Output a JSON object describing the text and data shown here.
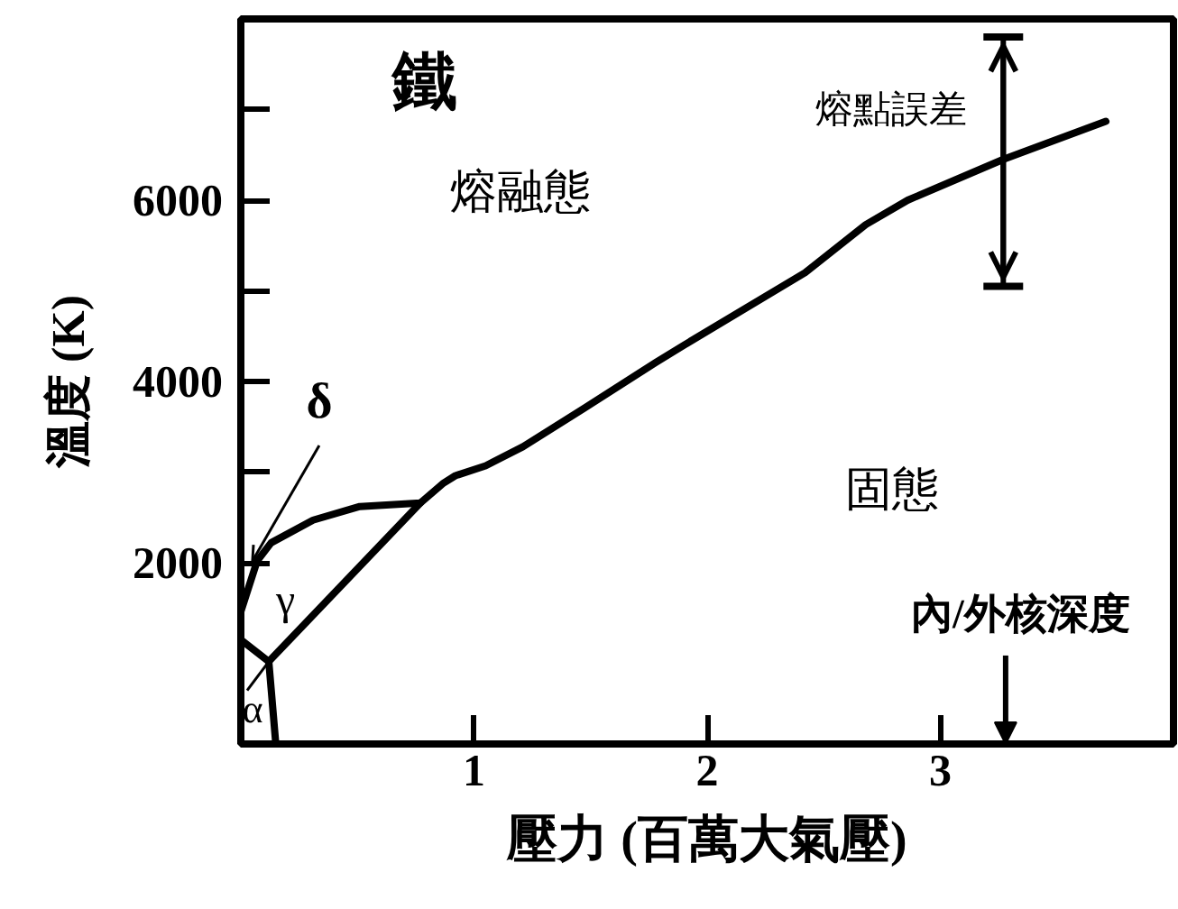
{
  "chart_data": {
    "type": "line",
    "title": "鐵",
    "xlabel": "壓力 (百萬大氣壓)",
    "ylabel": "溫度 (K)",
    "xlim": [
      0,
      4
    ],
    "ylim": [
      0,
      8000
    ],
    "xticks": [
      1,
      2,
      3
    ],
    "yticks": [
      2000,
      {
        "value": 3000,
        "label": null
      },
      4000,
      {
        "value": 5000,
        "label": null
      },
      6000,
      {
        "value": 7000,
        "label": null
      }
    ],
    "series": [
      {
        "color": "#000000",
        "x": [
          0,
          0.07
        ],
        "values": [
          1460,
          2020
        ]
      },
      {
        "color": "#000000",
        "x": [
          0.07,
          0.13,
          0.31,
          0.51,
          0.77,
          0.87,
          0.92,
          1.05,
          1.21,
          1.47,
          1.78,
          1.9,
          2.42,
          2.68,
          2.86,
          3.27,
          3.71
        ],
        "values": [
          2020,
          2220,
          2470,
          2620,
          2660,
          2880,
          2960,
          3070,
          3280,
          3700,
          4210,
          4400,
          5200,
          5730,
          6000,
          6450,
          6870
        ],
        "errors": [
          null,
          null,
          null,
          null,
          null,
          null,
          null,
          null,
          null,
          null,
          null,
          null,
          null,
          null,
          null,
          [
            5050,
            7800
          ],
          null
        ]
      },
      {
        "color": "#000000",
        "x": [
          0.12,
          0.77
        ],
        "values": [
          910,
          2660
        ]
      },
      {
        "color": "#000000",
        "x": [
          0,
          0.12
        ],
        "values": [
          1150,
          910
        ]
      },
      {
        "color": "#000000",
        "x": [
          0.12,
          0.15
        ],
        "values": [
          910,
          0
        ]
      }
    ],
    "annotations": [
      "熔融態",
      "固態",
      {
        "text": "δ",
        "x": 0.05,
        "y": 2020
      },
      "γ",
      {
        "text": "α",
        "x": 0.12,
        "y": 910
      },
      {
        "text": "熔點誤差",
        "x": 3.27,
        "y": 6450
      },
      "內/外核深度"
    ]
  }
}
